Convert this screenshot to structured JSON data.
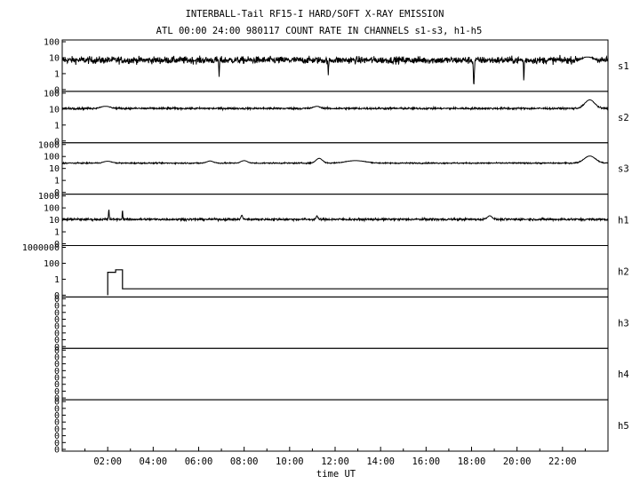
{
  "chart_data": {
    "type": "line",
    "title": "INTERBALL-Tail RF15-I HARD/SOFT X-RAY EMISSION",
    "subtitle": "ATL 00:00 24:00 980117  COUNT RATE IN CHANNELS s1-s3, h1-h5",
    "xlabel": "time UT",
    "xlim": [
      0,
      24
    ],
    "x_ticks": [
      "02:00",
      "04:00",
      "06:00",
      "08:00",
      "10:00",
      "12:00",
      "14:00",
      "16:00",
      "18:00",
      "20:00",
      "22:00"
    ],
    "x_tick_hours": [
      2,
      4,
      6,
      8,
      10,
      12,
      14,
      16,
      18,
      20,
      22
    ],
    "yscale": "log",
    "grid": false,
    "panels": [
      {
        "name": "s1",
        "y_ticks": [
          "100",
          "10",
          "1",
          "0"
        ],
        "ylim_log": [
          0,
          100
        ],
        "baseline": 7,
        "noise_decades": 0.22,
        "features": [
          {
            "hour": 6.9,
            "value": 0.8,
            "width": 0.02
          },
          {
            "hour": 11.7,
            "value": 0.9,
            "width": 0.02
          },
          {
            "hour": 18.1,
            "value": 0.3,
            "width": 0.03
          },
          {
            "hour": 20.3,
            "value": 0.5,
            "width": 0.02
          },
          {
            "hour": 23.1,
            "value": 11,
            "width": 0.35
          }
        ]
      },
      {
        "name": "s2",
        "y_ticks": [
          "100",
          "10",
          "1",
          "0"
        ],
        "ylim_log": [
          0,
          100
        ],
        "baseline": 11,
        "noise_decades": 0.06,
        "features": [
          {
            "hour": 1.9,
            "value": 15,
            "width": 0.3
          },
          {
            "hour": 11.2,
            "value": 15,
            "width": 0.2
          },
          {
            "hour": 23.2,
            "value": 38,
            "width": 0.3
          }
        ]
      },
      {
        "name": "s3",
        "y_ticks": [
          "1000",
          "100",
          "10",
          "1",
          "0"
        ],
        "ylim_log": [
          0,
          1000
        ],
        "baseline": 28,
        "noise_decades": 0.05,
        "features": [
          {
            "hour": 2.0,
            "value": 40,
            "width": 0.25
          },
          {
            "hour": 6.5,
            "value": 42,
            "width": 0.2
          },
          {
            "hour": 8.0,
            "value": 45,
            "width": 0.2
          },
          {
            "hour": 11.3,
            "value": 70,
            "width": 0.2
          },
          {
            "hour": 12.9,
            "value": 45,
            "width": 0.6
          },
          {
            "hour": 23.2,
            "value": 110,
            "width": 0.35
          }
        ]
      },
      {
        "name": "h1",
        "y_ticks": [
          "1000",
          "100",
          "10",
          "1",
          "0"
        ],
        "ylim_log": [
          0,
          1000
        ],
        "baseline": 11,
        "noise_decades": 0.09,
        "features": [
          {
            "hour": 2.05,
            "value": 80,
            "width": 0.02
          },
          {
            "hour": 2.65,
            "value": 65,
            "width": 0.02
          },
          {
            "hour": 7.9,
            "value": 25,
            "width": 0.05
          },
          {
            "hour": 11.2,
            "value": 22,
            "width": 0.05
          },
          {
            "hour": 18.8,
            "value": 22,
            "width": 0.15
          }
        ]
      },
      {
        "name": "h2",
        "y_ticks": [
          "1000000",
          "100",
          "1",
          "0"
        ],
        "ylim_log": [
          0,
          1000000
        ],
        "steps": [
          [
            2.0,
            20
          ],
          [
            2.35,
            60
          ],
          [
            2.65,
            0.4
          ],
          [
            24,
            0.4
          ]
        ]
      },
      {
        "name": "h3",
        "y_ticks": [
          "0",
          "0",
          "0",
          "0",
          "0",
          "0",
          "0",
          "0"
        ]
      },
      {
        "name": "h4",
        "y_ticks": [
          "0",
          "0",
          "0",
          "0",
          "0",
          "0",
          "0",
          "0"
        ]
      },
      {
        "name": "h5",
        "y_ticks": [
          "0",
          "0",
          "0",
          "0",
          "0",
          "0",
          "0",
          "0"
        ]
      }
    ]
  }
}
